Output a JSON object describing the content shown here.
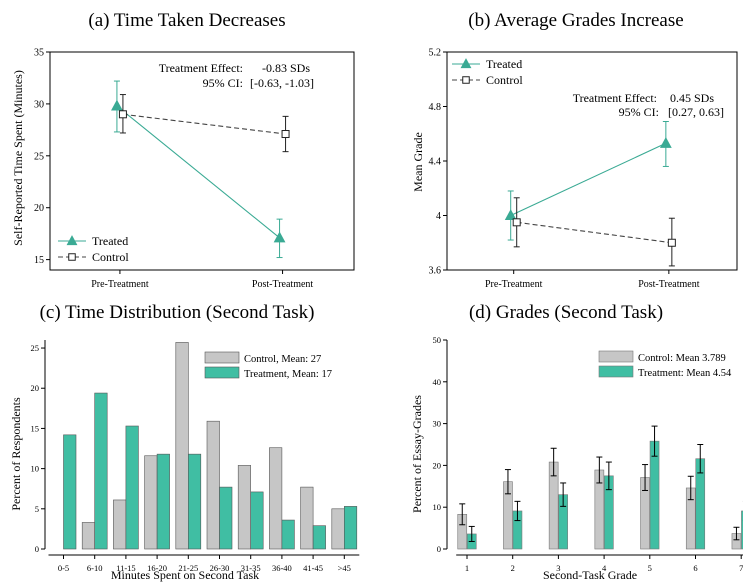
{
  "colors": {
    "treated": "#3aaa94",
    "treated_bar": "#40bea3",
    "control": "#444444",
    "control_bar": "#c6c6c6",
    "errorbar": "#000000"
  },
  "chart_data": [
    {
      "panel": "a",
      "type": "line",
      "title": "(a) Time Taken Decreases",
      "xlabel": "",
      "ylabel": "Self-Reported Time Spent (Minutes)",
      "categories": [
        "Pre-Treatment",
        "Post-Treatment"
      ],
      "ylim": [
        14,
        35
      ],
      "yticks": [
        "15",
        "20",
        "25",
        "30",
        "35"
      ],
      "legend_position": "bottom-left",
      "series": [
        {
          "name": "Treated",
          "values": [
            29.8,
            17.1
          ],
          "err_low": [
            27.3,
            15.2
          ],
          "err_high": [
            32.2,
            18.9
          ]
        },
        {
          "name": "Control",
          "values": [
            29.0,
            27.1
          ],
          "err_low": [
            27.2,
            25.4
          ],
          "err_high": [
            30.9,
            28.8
          ]
        }
      ],
      "annotation": {
        "line1_label": "Treatment Effect:",
        "line1_value": "-0.83 SDs",
        "line2_label": "95% CI:",
        "line2_value": "[-0.63, -1.03]"
      }
    },
    {
      "panel": "b",
      "type": "line",
      "title": "(b) Average Grades Increase",
      "xlabel": "",
      "ylabel": "Mean Grade",
      "categories": [
        "Pre-Treatment",
        "Post-Treatment"
      ],
      "ylim": [
        3.6,
        5.2
      ],
      "yticks": [
        "3.6",
        "4",
        "4.4",
        "4.8",
        "5.2"
      ],
      "legend_position": "top-left",
      "series": [
        {
          "name": "Treated",
          "values": [
            4.0,
            4.53
          ],
          "err_low": [
            3.82,
            4.36
          ],
          "err_high": [
            4.18,
            4.69
          ]
        },
        {
          "name": "Control",
          "values": [
            3.95,
            3.8
          ],
          "err_low": [
            3.77,
            3.63
          ],
          "err_high": [
            4.13,
            3.98
          ]
        }
      ],
      "annotation": {
        "line1_label": "Treatment Effect:",
        "line1_value": "0.45 SDs",
        "line2_label": "95% CI:",
        "line2_value": "[0.27, 0.63]"
      }
    },
    {
      "panel": "c",
      "type": "bar",
      "title": "(c) Time Distribution (Second Task)",
      "xlabel": "Minutes Spent on Second Task",
      "ylabel": "Percent of Respondents",
      "categories": [
        "0-5",
        "6-10",
        "11-15",
        "16-20",
        "21-25",
        "26-30",
        "31-35",
        "36-40",
        "41-45",
        ">45"
      ],
      "ylim": [
        0,
        26
      ],
      "yticks": [
        "0",
        "5",
        "10",
        "15",
        "20",
        "25"
      ],
      "legend_position": "top-right",
      "series": [
        {
          "name": "Control, Mean: 27",
          "values": [
            0,
            3.3,
            6.1,
            11.6,
            25.7,
            15.9,
            10.4,
            12.6,
            7.7,
            5.0
          ]
        },
        {
          "name": "Treatment, Mean: 17",
          "values": [
            14.2,
            19.4,
            15.3,
            11.8,
            11.8,
            7.7,
            7.1,
            3.6,
            2.9,
            5.3
          ]
        }
      ]
    },
    {
      "panel": "d",
      "type": "bar",
      "title": "(d) Grades (Second Task)",
      "xlabel": "Second-Task Grade",
      "ylabel": "Percent of Essay-Grades",
      "categories": [
        "1",
        "2",
        "3",
        "4",
        "5",
        "6",
        "7"
      ],
      "ylim": [
        0,
        50
      ],
      "yticks": [
        "0",
        "10",
        "20",
        "30",
        "40",
        "50"
      ],
      "legend_position": "top-right",
      "series": [
        {
          "name": "Control: Mean 3.789",
          "values": [
            8.3,
            16.1,
            20.8,
            18.9,
            17.1,
            14.6,
            3.7
          ],
          "err_low": [
            5.8,
            13.2,
            17.5,
            15.8,
            14.0,
            11.8,
            2.2
          ],
          "err_high": [
            10.8,
            19.0,
            24.1,
            22.0,
            20.2,
            17.4,
            5.2
          ]
        },
        {
          "name": "Treatment: Mean 4.54",
          "values": [
            3.6,
            9.1,
            13.0,
            17.5,
            25.8,
            21.6,
            9.1
          ],
          "err_low": [
            1.8,
            6.8,
            10.2,
            14.2,
            22.2,
            18.2,
            6.8
          ],
          "err_high": [
            5.4,
            11.4,
            15.8,
            20.8,
            29.4,
            25.0,
            11.4
          ]
        }
      ]
    }
  ]
}
